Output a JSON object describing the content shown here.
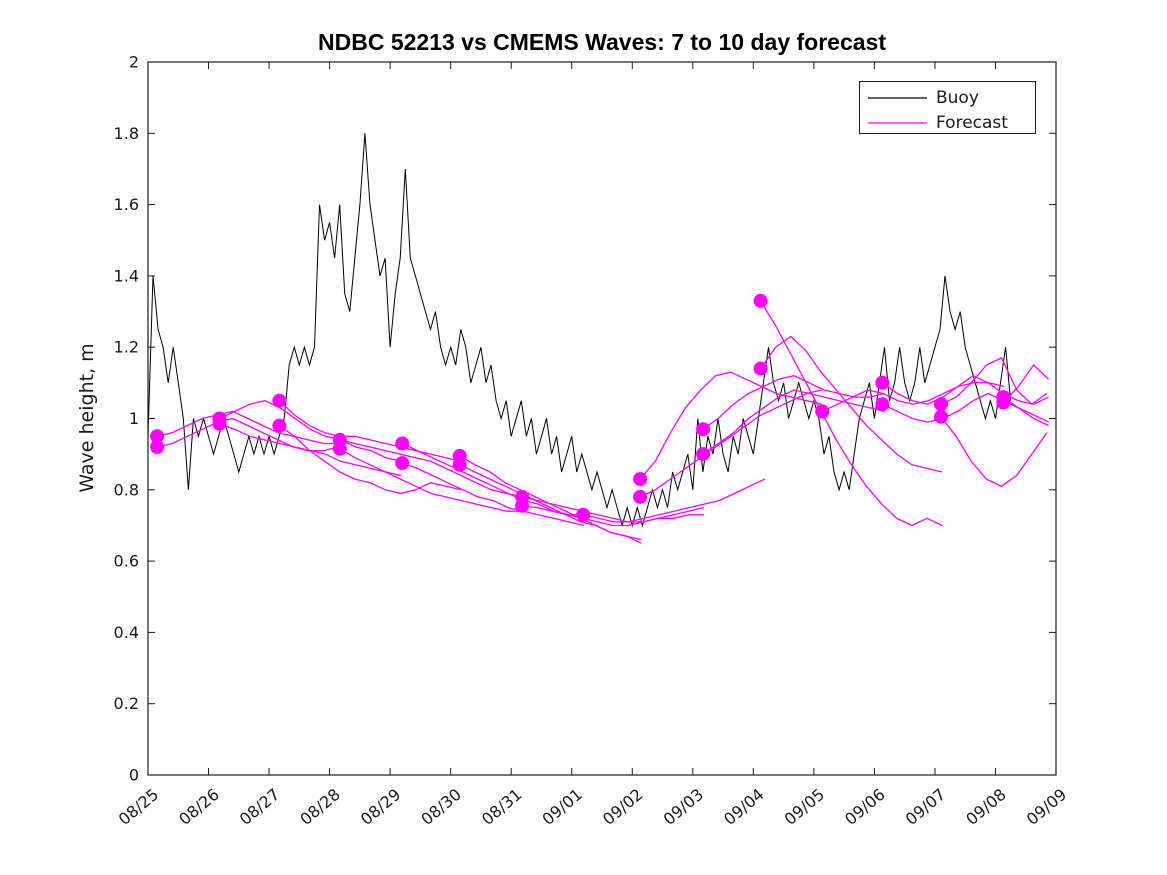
{
  "chart_data": {
    "type": "line",
    "title": "NDBC 52213 vs CMEMS Waves: 7 to 10 day forecast",
    "xlabel": "",
    "ylabel": "Wave height, m",
    "ylim": [
      0,
      2
    ],
    "x_range_days": [
      0,
      15
    ],
    "x_unit": "days, 0 = first tick (08/25)",
    "grid": false,
    "legend_position": "top-right-inside",
    "x_tick_rotation_deg": -40,
    "axes": {
      "x_ticks": [
        {
          "pos": 0,
          "label": "08/25"
        },
        {
          "pos": 1,
          "label": "08/26"
        },
        {
          "pos": 2,
          "label": "08/27"
        },
        {
          "pos": 3,
          "label": "08/28"
        },
        {
          "pos": 4,
          "label": "08/29"
        },
        {
          "pos": 5,
          "label": "08/30"
        },
        {
          "pos": 6,
          "label": "08/31"
        },
        {
          "pos": 7,
          "label": "09/01"
        },
        {
          "pos": 8,
          "label": "09/02"
        },
        {
          "pos": 9,
          "label": "09/03"
        },
        {
          "pos": 10,
          "label": "09/04"
        },
        {
          "pos": 11,
          "label": "09/05"
        },
        {
          "pos": 12,
          "label": "09/06"
        },
        {
          "pos": 13,
          "label": "09/07"
        },
        {
          "pos": 14,
          "label": "09/08"
        },
        {
          "pos": 15,
          "label": "09/09"
        }
      ],
      "y_ticks": [
        {
          "pos": 0,
          "label": "0"
        },
        {
          "pos": 0.2,
          "label": "0.2"
        },
        {
          "pos": 0.4,
          "label": "0.4"
        },
        {
          "pos": 0.6,
          "label": "0.6"
        },
        {
          "pos": 0.8,
          "label": "0.8"
        },
        {
          "pos": 1,
          "label": "1"
        },
        {
          "pos": 1.2,
          "label": "1.2"
        },
        {
          "pos": 1.4,
          "label": "1.4"
        },
        {
          "pos": 1.6,
          "label": "1.6"
        },
        {
          "pos": 1.8,
          "label": "1.8"
        },
        {
          "pos": 2,
          "label": "2"
        }
      ]
    },
    "buoy": {
      "name": "Buoy",
      "color": "#000000",
      "start_day": 0,
      "step_days": 0.083333,
      "values": [
        0.95,
        1.4,
        1.25,
        1.2,
        1.1,
        1.2,
        1.1,
        1.0,
        0.8,
        1.0,
        0.95,
        1.0,
        0.95,
        0.9,
        0.95,
        1.0,
        0.95,
        0.9,
        0.85,
        0.9,
        0.95,
        0.9,
        0.95,
        0.9,
        0.95,
        0.9,
        0.95,
        1.0,
        1.15,
        1.2,
        1.15,
        1.2,
        1.15,
        1.2,
        1.6,
        1.5,
        1.55,
        1.45,
        1.6,
        1.35,
        1.3,
        1.45,
        1.6,
        1.8,
        1.6,
        1.5,
        1.4,
        1.45,
        1.2,
        1.35,
        1.45,
        1.7,
        1.45,
        1.4,
        1.35,
        1.3,
        1.25,
        1.3,
        1.2,
        1.15,
        1.2,
        1.15,
        1.25,
        1.2,
        1.1,
        1.15,
        1.2,
        1.1,
        1.15,
        1.05,
        1.0,
        1.05,
        0.95,
        1.0,
        1.05,
        0.95,
        1.0,
        0.9,
        0.95,
        1.0,
        0.9,
        0.95,
        0.85,
        0.9,
        0.95,
        0.85,
        0.9,
        0.85,
        0.8,
        0.85,
        0.8,
        0.75,
        0.8,
        0.75,
        0.7,
        0.75,
        0.7,
        0.75,
        0.7,
        0.75,
        0.8,
        0.75,
        0.8,
        0.75,
        0.85,
        0.8,
        0.85,
        0.9,
        0.8,
        1.0,
        0.85,
        0.95,
        0.9,
        1.0,
        0.9,
        0.85,
        0.95,
        0.9,
        1.0,
        0.95,
        0.9,
        1.0,
        1.1,
        1.2,
        1.1,
        1.05,
        1.1,
        1.0,
        1.05,
        1.1,
        1.05,
        1.0,
        1.05,
        1.0,
        0.9,
        0.95,
        0.85,
        0.8,
        0.85,
        0.8,
        0.9,
        1.0,
        1.05,
        1.1,
        1.0,
        1.1,
        1.2,
        1.05,
        1.1,
        1.2,
        1.1,
        1.05,
        1.1,
        1.2,
        1.1,
        1.15,
        1.2,
        1.25,
        1.4,
        1.3,
        1.25,
        1.3,
        1.2,
        1.15,
        1.1,
        1.05,
        1.0,
        1.05,
        1.0,
        1.1,
        1.2,
        1.05
      ]
    },
    "forecast": {
      "name": "Forecast",
      "color": "#ff00ff",
      "marker": "filled-circle-at-run-start",
      "step_days": 0.25,
      "runs": [
        {
          "start_day": 0.15,
          "values": [
            0.95,
            0.96,
            0.98,
            1.0,
            1.01,
            1.02,
            1.0,
            0.98,
            0.96,
            0.95,
            0.94,
            0.93,
            0.93
          ]
        },
        {
          "start_day": 0.15,
          "values": [
            0.92,
            0.93,
            0.95,
            0.97,
            0.99,
            1.0,
            0.98,
            0.96,
            0.94,
            0.92,
            0.91,
            0.91,
            0.92
          ]
        },
        {
          "start_day": 1.18,
          "values": [
            1.0,
            1.02,
            1.04,
            1.05,
            1.03,
            1.0,
            0.97,
            0.95,
            0.94,
            0.92,
            0.91,
            0.89,
            0.88
          ]
        },
        {
          "start_day": 1.18,
          "values": [
            0.985,
            0.97,
            0.95,
            0.94,
            0.93,
            0.92,
            0.91,
            0.9,
            0.88,
            0.87,
            0.86,
            0.85,
            0.84
          ]
        },
        {
          "start_day": 2.17,
          "values": [
            1.05,
            1.01,
            0.98,
            0.96,
            0.95,
            0.95,
            0.94,
            0.93,
            0.92,
            0.91,
            0.9,
            0.89,
            0.88
          ]
        },
        {
          "start_day": 2.17,
          "values": [
            0.98,
            0.95,
            0.91,
            0.88,
            0.85,
            0.83,
            0.82,
            0.8,
            0.79,
            0.8,
            0.82,
            0.81,
            0.8
          ]
        },
        {
          "start_day": 3.17,
          "values": [
            0.94,
            0.93,
            0.92,
            0.91,
            0.9,
            0.89,
            0.88,
            0.86,
            0.84,
            0.82,
            0.8,
            0.79,
            0.78
          ]
        },
        {
          "start_day": 3.17,
          "values": [
            0.915,
            0.89,
            0.87,
            0.85,
            0.83,
            0.81,
            0.79,
            0.78,
            0.77,
            0.76,
            0.75,
            0.74,
            0.74
          ]
        },
        {
          "start_day": 4.2,
          "values": [
            0.93,
            0.91,
            0.89,
            0.87,
            0.85,
            0.83,
            0.81,
            0.79,
            0.77,
            0.76,
            0.74,
            0.73,
            0.73
          ]
        },
        {
          "start_day": 4.2,
          "values": [
            0.875,
            0.86,
            0.84,
            0.82,
            0.8,
            0.78,
            0.77,
            0.75,
            0.74,
            0.73,
            0.72,
            0.71,
            0.7
          ]
        },
        {
          "start_day": 5.15,
          "values": [
            0.895,
            0.87,
            0.85,
            0.82,
            0.8,
            0.78,
            0.76,
            0.74,
            0.72,
            0.7,
            0.68,
            0.67,
            0.65
          ]
        },
        {
          "start_day": 5.15,
          "values": [
            0.87,
            0.85,
            0.83,
            0.81,
            0.79,
            0.77,
            0.75,
            0.73,
            0.71,
            0.7,
            0.68,
            0.67,
            0.66
          ]
        },
        {
          "start_day": 6.18,
          "values": [
            0.78,
            0.77,
            0.76,
            0.75,
            0.74,
            0.73,
            0.72,
            0.71,
            0.71,
            0.72,
            0.72,
            0.73,
            0.73
          ]
        },
        {
          "start_day": 6.18,
          "values": [
            0.755,
            0.75,
            0.74,
            0.73,
            0.72,
            0.71,
            0.7,
            0.7,
            0.71,
            0.72,
            0.73,
            0.74,
            0.75
          ]
        },
        {
          "start_day": 7.19,
          "values": [
            0.73,
            0.72,
            0.71,
            0.71,
            0.72,
            0.73,
            0.74,
            0.75,
            0.76,
            0.77,
            0.79,
            0.81,
            0.83
          ]
        },
        {
          "start_day": 8.13,
          "values": [
            0.83,
            0.88,
            0.96,
            1.03,
            1.08,
            1.12,
            1.13,
            1.11,
            1.09,
            1.07,
            1.06,
            1.05,
            1.04
          ]
        },
        {
          "start_day": 8.13,
          "values": [
            0.78,
            0.8,
            0.83,
            0.86,
            0.89,
            0.92,
            0.95,
            0.98,
            1.01,
            1.03,
            1.05,
            1.07,
            1.08
          ]
        },
        {
          "start_day": 9.17,
          "values": [
            0.97,
            1.0,
            1.04,
            1.07,
            1.09,
            1.11,
            1.12,
            1.1,
            1.08,
            1.07,
            1.06,
            1.06,
            1.07
          ]
        },
        {
          "start_day": 9.17,
          "values": [
            0.9,
            0.93,
            0.96,
            1.0,
            1.03,
            1.06,
            1.08,
            1.07,
            1.06,
            1.05,
            1.04,
            1.03,
            1.02
          ]
        },
        {
          "start_day": 10.12,
          "values": [
            1.33,
            1.26,
            1.18,
            1.1,
            1.02,
            0.94,
            0.87,
            0.81,
            0.76,
            0.72,
            0.7,
            0.72,
            0.7
          ]
        },
        {
          "start_day": 10.12,
          "values": [
            1.14,
            1.2,
            1.23,
            1.19,
            1.13,
            1.08,
            1.03,
            0.98,
            0.94,
            0.9,
            0.87,
            0.86,
            0.85
          ]
        },
        {
          "start_day": 11.14,
          "values": [
            1.02,
            1.04,
            1.06,
            1.08,
            1.07,
            1.05,
            1.04,
            1.05,
            1.07,
            1.09,
            1.1,
            1.1,
            1.09
          ]
        },
        {
          "start_day": 12.13,
          "values": [
            1.1,
            1.07,
            1.05,
            1.04,
            1.06,
            1.09,
            1.12,
            1.1,
            1.07,
            1.05,
            1.04,
            1.06
          ]
        },
        {
          "start_day": 12.13,
          "values": [
            1.04,
            1.02,
            1.0,
            0.99,
            1.0,
            1.02,
            1.05,
            1.07,
            1.05,
            1.03,
            1.01,
            0.99
          ]
        },
        {
          "start_day": 13.1,
          "values": [
            1.04,
            1.06,
            1.1,
            1.15,
            1.17,
            1.08,
            1.04,
            1.07
          ]
        },
        {
          "start_day": 13.1,
          "values": [
            1.005,
            0.95,
            0.88,
            0.83,
            0.81,
            0.84,
            0.9,
            0.96
          ]
        },
        {
          "start_day": 14.13,
          "values": [
            1.06,
            1.03,
            1.0,
            0.98
          ]
        },
        {
          "start_day": 14.13,
          "values": [
            1.045,
            1.09,
            1.15,
            1.11
          ]
        }
      ]
    }
  },
  "legend": {
    "items": [
      {
        "label": "Buoy",
        "color": "#000000"
      },
      {
        "label": "Forecast",
        "color": "#ff00ff"
      }
    ]
  }
}
